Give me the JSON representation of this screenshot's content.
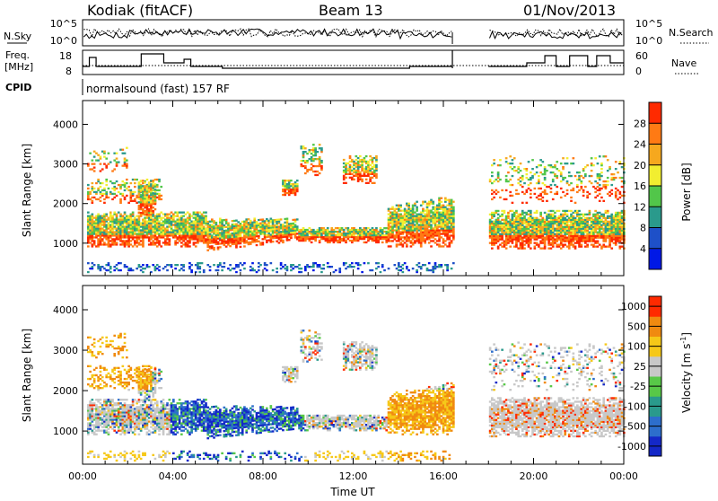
{
  "header": {
    "station": "Kodiak (fitACF)",
    "beam": "Beam 13",
    "date": "01/Nov/2013"
  },
  "top_panels": {
    "noise": {
      "left_label": "N.Sky",
      "right_label": "N.Search",
      "left_ticks": [
        "10^5",
        "10^0"
      ],
      "right_ticks": [
        "10^5",
        "10^0"
      ]
    },
    "freq": {
      "left_label_1": "Freq.",
      "left_label_2": "[MHz]",
      "right_label": "Nave",
      "left_ticks": [
        "18",
        "8"
      ],
      "right_ticks": [
        "60",
        "0"
      ]
    },
    "cpid": {
      "label": "CPID",
      "text": "normalsound (fast) 157 RF"
    }
  },
  "chart_data": [
    {
      "type": "heatmap",
      "title": "Power",
      "ylabel": "Slant Range [km]",
      "ylim": [
        180,
        4600
      ],
      "yticks": [
        "1000",
        "2000",
        "3000",
        "4000"
      ],
      "xlim": [
        0,
        24
      ],
      "colorbar": {
        "label": "Power [dB]",
        "ticks": [
          "4",
          "8",
          "12",
          "16",
          "20",
          "24",
          "28"
        ],
        "colors": [
          "#0018e6",
          "#1e50c8",
          "#2a9a8c",
          "#52c64a",
          "#f2ee30",
          "#f6a81e",
          "#ff7a14",
          "#ff2a00"
        ]
      },
      "data_gap_ut": [
        16.4,
        18.0
      ]
    },
    {
      "type": "heatmap",
      "title": "Velocity",
      "ylabel": "Slant Range [km]",
      "ylim": [
        180,
        4600
      ],
      "yticks": [
        "1000",
        "2000",
        "3000",
        "4000"
      ],
      "xlim": [
        0,
        24
      ],
      "xticks": [
        "00:00",
        "04:00",
        "08:00",
        "12:00",
        "16:00",
        "20:00",
        "00:00"
      ],
      "xlabel": "Time UT",
      "colorbar": {
        "label": "Velocity [m s",
        "label_sup": "-1",
        "label_end": "]",
        "ticks": [
          "1000",
          "500",
          "100",
          "25",
          "-25",
          "-100",
          "-500",
          "-1000"
        ],
        "colors": [
          "#1428c8",
          "#2d6ecc",
          "#2a9a8c",
          "#58c848",
          "#c8c8c8",
          "#f6c818",
          "#f08a10",
          "#ff2a00"
        ]
      },
      "data_gap_ut": [
        16.4,
        18.0
      ]
    }
  ]
}
